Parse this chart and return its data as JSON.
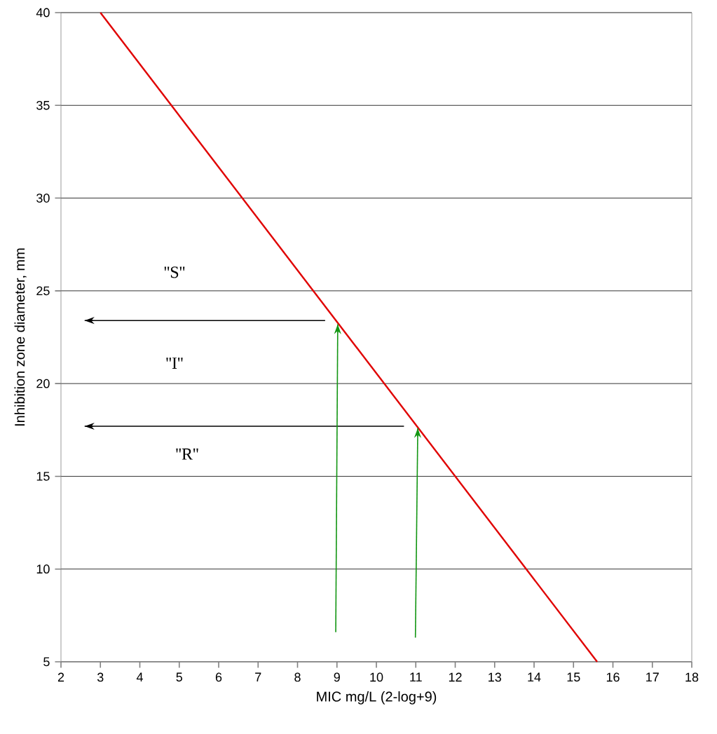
{
  "chart_data": {
    "type": "line",
    "xlabel": "MIC mg/L (2-log+9)",
    "ylabel": "Inhibition zone diameter, mm",
    "xlim": [
      2,
      18
    ],
    "ylim": [
      5,
      40
    ],
    "xticks": [
      2,
      3,
      4,
      5,
      6,
      7,
      8,
      9,
      10,
      11,
      12,
      13,
      14,
      15,
      16,
      17,
      18
    ],
    "yticks": [
      5,
      10,
      15,
      20,
      25,
      30,
      35,
      40
    ],
    "grid": "y",
    "marker": "none",
    "line_style": "solid",
    "series": [
      {
        "x": [
          3,
          15.6
        ],
        "values": [
          40,
          5
        ],
        "color": "#e00000"
      },
      {
        "x": [
          8.7,
          2.6
        ],
        "values": [
          23.4,
          23.4
        ],
        "color": "#000000"
      },
      {
        "x": [
          10.7,
          2.6
        ],
        "values": [
          17.7,
          17.7
        ],
        "color": "#000000"
      },
      {
        "x": [
          8.97,
          9.02
        ],
        "values": [
          6.6,
          23.2
        ],
        "color": "#139613"
      },
      {
        "x": [
          10.99,
          11.05
        ],
        "values": [
          6.3,
          17.6
        ],
        "color": "#139613"
      }
    ],
    "annotations": [
      "''S''",
      "''I''",
      "''R''"
    ]
  }
}
